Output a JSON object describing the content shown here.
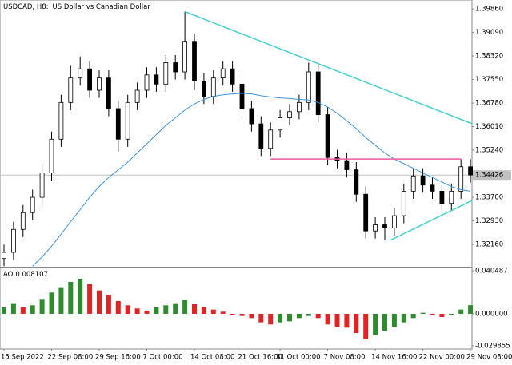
{
  "chart_data": [
    {
      "type": "candlestick",
      "title": "USDCAD, H8:",
      "subtitle": "US Dollar vs Canadian Dollar",
      "categories": [
        "15 Sep 2022",
        null,
        null,
        null,
        null,
        "22 Sep 08:00",
        null,
        null,
        null,
        null,
        "29 Sep 16:00",
        null,
        null,
        null,
        null,
        "7 Oct 00:00",
        null,
        null,
        null,
        null,
        "14 Oct 08:00",
        null,
        null,
        null,
        null,
        "21 Oct 16:00",
        null,
        null,
        null,
        "31 Oct 00:00",
        null,
        null,
        null,
        null,
        "7 Nov 08:00",
        null,
        null,
        null,
        null,
        "14 Nov 16:00",
        null,
        null,
        null,
        null,
        "22 Nov 00:00",
        null,
        null,
        null,
        null,
        "29 Nov 08:00"
      ],
      "open": [
        1.317,
        1.319,
        1.3265,
        1.332,
        1.337,
        1.345,
        1.356,
        1.368,
        1.376,
        1.379,
        1.372,
        1.376,
        1.366,
        1.356,
        1.368,
        1.372,
        1.377,
        1.374,
        1.381,
        1.378,
        1.388,
        1.375,
        1.37,
        1.376,
        1.379,
        1.374,
        1.366,
        1.361,
        1.353,
        1.359,
        1.363,
        1.365,
        1.368,
        1.378,
        1.364,
        1.35,
        1.349,
        1.346,
        1.338,
        1.326,
        1.328,
        1.327,
        1.331,
        1.339,
        1.344,
        1.341,
        1.339,
        1.335,
        1.339,
        1.347
      ],
      "high": [
        1.3215,
        1.329,
        1.3345,
        1.3395,
        1.3475,
        1.3585,
        1.3705,
        1.38,
        1.383,
        1.3815,
        1.3785,
        1.3785,
        1.3685,
        1.3705,
        1.3745,
        1.3795,
        1.3795,
        1.3835,
        1.3835,
        1.3977,
        1.3905,
        1.3775,
        1.3785,
        1.3815,
        1.3815,
        1.3765,
        1.3685,
        1.3635,
        1.3615,
        1.3655,
        1.3675,
        1.3705,
        1.381,
        1.3805,
        1.3665,
        1.3525,
        1.3515,
        1.3485,
        1.3405,
        1.3305,
        1.3305,
        1.3335,
        1.3415,
        1.3465,
        1.3465,
        1.3435,
        1.3415,
        1.3415,
        1.3495,
        1.3495
      ],
      "low": [
        1.3145,
        1.3165,
        1.324,
        1.3295,
        1.3345,
        1.3425,
        1.3535,
        1.3655,
        1.3735,
        1.3695,
        1.3695,
        1.3635,
        1.352,
        1.3535,
        1.3655,
        1.3695,
        1.3715,
        1.3715,
        1.3755,
        1.3755,
        1.372,
        1.3675,
        1.3675,
        1.3735,
        1.3715,
        1.3635,
        1.3585,
        1.3505,
        1.3505,
        1.3565,
        1.3605,
        1.3625,
        1.3655,
        1.3615,
        1.3475,
        1.3465,
        1.3435,
        1.3355,
        1.3235,
        1.3235,
        1.323,
        1.3245,
        1.3285,
        1.3365,
        1.3385,
        1.3365,
        1.3325,
        1.3325,
        1.3365,
        1.3418
      ],
      "close": [
        1.319,
        1.3265,
        1.332,
        1.337,
        1.345,
        1.356,
        1.368,
        1.376,
        1.379,
        1.372,
        1.376,
        1.366,
        1.356,
        1.368,
        1.372,
        1.377,
        1.374,
        1.381,
        1.378,
        1.388,
        1.375,
        1.37,
        1.376,
        1.379,
        1.374,
        1.366,
        1.361,
        1.353,
        1.359,
        1.363,
        1.365,
        1.368,
        1.378,
        1.364,
        1.35,
        1.349,
        1.346,
        1.338,
        1.326,
        1.328,
        1.327,
        1.331,
        1.339,
        1.344,
        1.341,
        1.339,
        1.335,
        1.339,
        1.347,
        1.3443
      ],
      "candle_color": "#000000",
      "ma": {
        "color": "#3d94dc",
        "values": [
          null,
          null,
          null,
          1.3145,
          1.3175,
          1.321,
          1.325,
          1.329,
          1.333,
          1.337,
          1.3405,
          1.3435,
          1.346,
          1.3485,
          1.3515,
          1.3545,
          1.3575,
          1.3605,
          1.363,
          1.3655,
          1.3675,
          1.369,
          1.37,
          1.3705,
          1.3708,
          1.371,
          1.3708,
          1.3702,
          1.3698,
          1.3695,
          1.3693,
          1.369,
          1.3688,
          1.368,
          1.3665,
          1.3645,
          1.362,
          1.3595,
          1.3565,
          1.354,
          1.3515,
          1.3495,
          1.348,
          1.3465,
          1.345,
          1.3435,
          1.342,
          1.3405,
          1.3395,
          1.339
        ]
      },
      "lines": [
        {
          "color": "#44d0d0",
          "x": [
            19,
            49.2
          ],
          "y": [
            1.3977,
            1.361
          ]
        },
        {
          "color": "#44d0d0",
          "x": [
            40.6,
            49.2
          ],
          "y": [
            1.323,
            1.336
          ]
        },
        {
          "color": "#ee5aa0",
          "x": [
            28,
            48
          ],
          "y": [
            1.3495,
            1.3495
          ]
        }
      ],
      "last_price": 1.34426,
      "ylim": [
        1.3143,
        1.4015
      ],
      "yticks": [
        {
          "value": 1.3986,
          "label": "1.39860"
        },
        {
          "value": 1.3909,
          "label": "1.39090"
        },
        {
          "value": 1.3832,
          "label": "1.38320"
        },
        {
          "value": 1.3755,
          "label": "1.37550"
        },
        {
          "value": 1.3678,
          "label": "1.36780"
        },
        {
          "value": 1.3601,
          "label": "1.36010"
        },
        {
          "value": 1.3524,
          "label": "1.35240"
        },
        {
          "value": 1.337,
          "label": "1.33700"
        },
        {
          "value": 1.3293,
          "label": "1.32930"
        },
        {
          "value": 1.3216,
          "label": "1.32160"
        }
      ]
    },
    {
      "type": "bar",
      "title": "AO",
      "values": [
        0.006,
        0.01,
        0.006,
        0.008,
        0.014,
        0.02,
        0.025,
        0.03,
        0.033,
        0.028,
        0.022,
        0.018,
        0.012,
        0.008,
        0.005,
        0.003,
        0.006,
        0.008,
        0.01,
        0.013,
        0.009,
        0.006,
        0.004,
        0.002,
        -0.001,
        -0.002,
        -0.004,
        -0.008,
        -0.01,
        -0.008,
        -0.007,
        -0.004,
        -0.002,
        -0.004,
        -0.01,
        -0.012,
        -0.013,
        -0.018,
        -0.024,
        -0.02,
        -0.016,
        -0.012,
        -0.008,
        -0.004,
        0.001,
        -0.001,
        -0.003,
        -0.001,
        0.004,
        0.008107
      ],
      "up_color": "#2e8b2e",
      "down_color": "#e02424",
      "ylim": [
        -0.033,
        0.0427
      ],
      "yticks": [
        0.040487,
        {
          "value": 0,
          "label": "0.000000"
        },
        -0.029855
      ]
    }
  ]
}
